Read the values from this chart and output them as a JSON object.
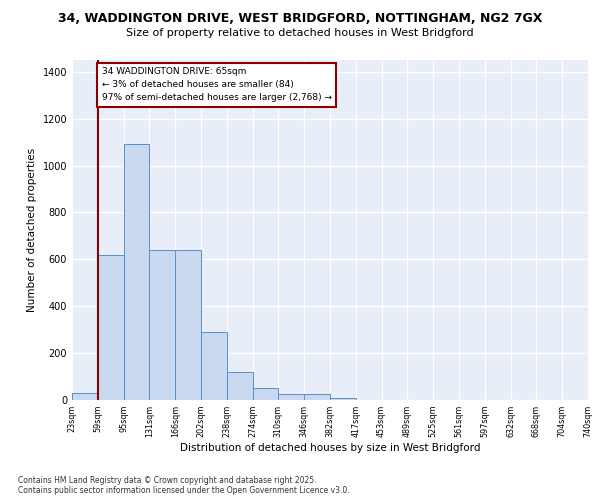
{
  "title_line1": "34, WADDINGTON DRIVE, WEST BRIDGFORD, NOTTINGHAM, NG2 7GX",
  "title_line2": "Size of property relative to detached houses in West Bridgford",
  "xlabel": "Distribution of detached houses by size in West Bridgford",
  "ylabel": "Number of detached properties",
  "bins": [
    "23sqm",
    "59sqm",
    "95sqm",
    "131sqm",
    "166sqm",
    "202sqm",
    "238sqm",
    "274sqm",
    "310sqm",
    "346sqm",
    "382sqm",
    "417sqm",
    "453sqm",
    "489sqm",
    "525sqm",
    "561sqm",
    "597sqm",
    "632sqm",
    "668sqm",
    "704sqm",
    "740sqm"
  ],
  "bar_values": [
    30,
    620,
    1090,
    640,
    640,
    290,
    120,
    50,
    25,
    25,
    10,
    0,
    0,
    0,
    0,
    0,
    0,
    0,
    0,
    0
  ],
  "bar_color": "#c9d9f0",
  "bar_edge_color": "#5a8fc4",
  "vline_color": "#8b0000",
  "annotation_text": "34 WADDINGTON DRIVE: 65sqm\n← 3% of detached houses are smaller (84)\n97% of semi-detached houses are larger (2,768) →",
  "annotation_box_color": "#ffffff",
  "annotation_box_edge": "#8b0000",
  "ylim": [
    0,
    1450
  ],
  "yticks": [
    0,
    200,
    400,
    600,
    800,
    1000,
    1200,
    1400
  ],
  "bg_color": "#e8eef8",
  "grid_color": "#ffffff",
  "fig_bg_color": "#ffffff",
  "footer_line1": "Contains HM Land Registry data © Crown copyright and database right 2025.",
  "footer_line2": "Contains public sector information licensed under the Open Government Licence v3.0."
}
